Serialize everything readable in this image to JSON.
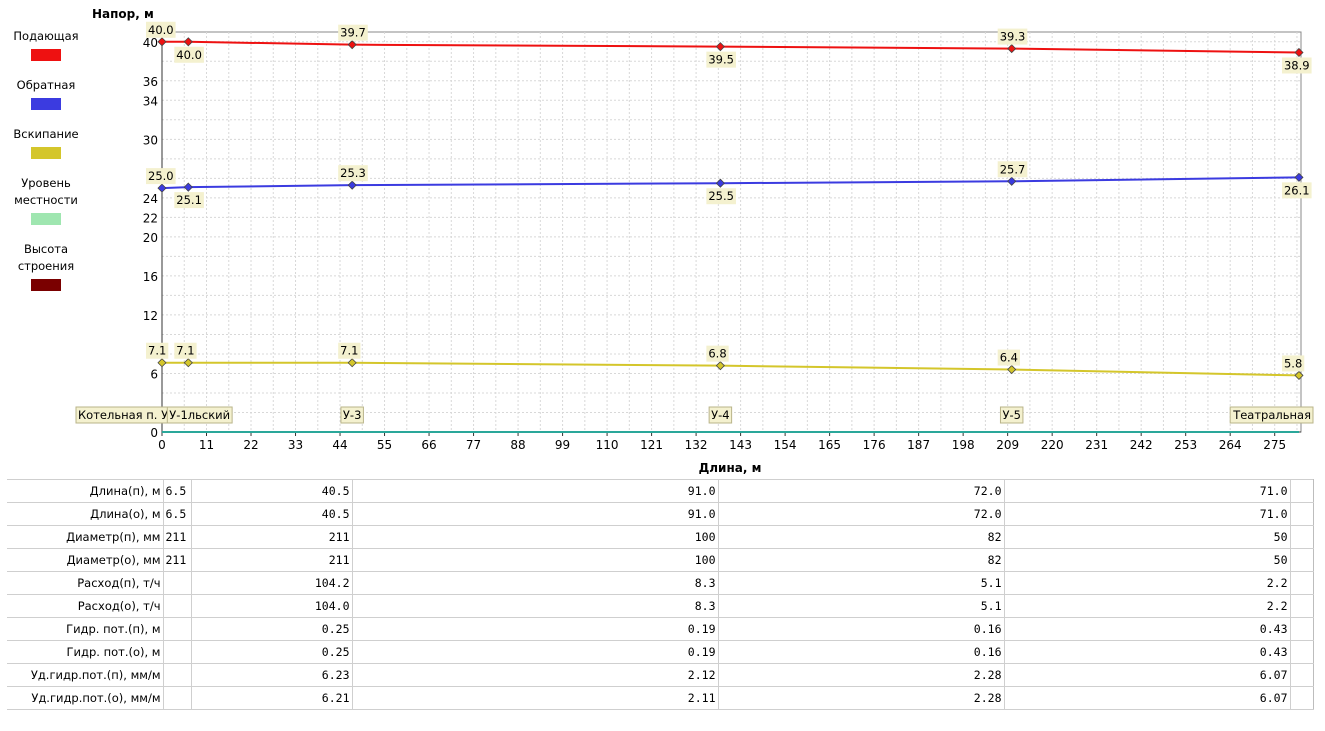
{
  "chart_data": {
    "type": "line",
    "ylabel": "Напор, м",
    "xlabel": "Длина, м",
    "xlim": [
      0,
      281.5
    ],
    "ylim": [
      0,
      41
    ],
    "x_ticks": [
      0,
      11,
      22,
      33,
      44,
      55,
      66,
      77,
      88,
      99,
      110,
      121,
      132,
      143,
      154,
      165,
      176,
      187,
      198,
      209,
      220,
      231,
      242,
      253,
      264,
      275
    ],
    "y_ticks": [
      0,
      6,
      12,
      16,
      20,
      22,
      24,
      30,
      34,
      36,
      40
    ],
    "grid": true,
    "legend_position": "left",
    "series": [
      {
        "name": "Подающая",
        "color": "#ee1111",
        "x": [
          0,
          6.5,
          47,
          138,
          210,
          281
        ],
        "y": [
          40.0,
          40.0,
          39.7,
          39.5,
          39.3,
          38.9
        ],
        "labels": [
          "40.0",
          "40.0",
          "39.7",
          "39.5",
          "39.3",
          "38.9"
        ],
        "label_side": [
          "up",
          "down",
          "up",
          "down",
          "up",
          "down"
        ]
      },
      {
        "name": "Обратная",
        "color": "#3b3be0",
        "x": [
          0,
          6.5,
          47,
          138,
          210,
          281
        ],
        "y": [
          25.0,
          25.1,
          25.3,
          25.5,
          25.7,
          26.1
        ],
        "labels": [
          "25.0",
          "25.1",
          "25.3",
          "25.5",
          "25.7",
          "26.1"
        ],
        "label_side": [
          "up",
          "down",
          "up",
          "down",
          "up",
          "down"
        ]
      },
      {
        "name": "Вскипание",
        "color": "#d4c62b",
        "x": [
          0,
          6.5,
          47,
          138,
          210,
          281
        ],
        "y": [
          7.1,
          7.1,
          7.1,
          6.8,
          6.4,
          5.8
        ],
        "labels": [
          "7.1",
          "7.1",
          "7.1",
          "6.8",
          "6.4",
          "5.8"
        ],
        "label_side": [
          "up",
          "up",
          "up",
          "up",
          "up",
          "up"
        ]
      },
      {
        "name": "Уровень местности",
        "color": "#9fe6b0",
        "x": [
          0,
          281
        ],
        "y": [
          0,
          0
        ]
      },
      {
        "name": "Высота строения",
        "color": "#7a0000",
        "x": [],
        "y": []
      }
    ],
    "node_labels": [
      {
        "x": 0,
        "text": "Котельная п. У"
      },
      {
        "x": 6.5,
        "text": "У-1льский"
      },
      {
        "x": 47,
        "text": "У-3"
      },
      {
        "x": 138,
        "text": "У-4"
      },
      {
        "x": 210,
        "text": "У-5"
      },
      {
        "x": 281,
        "text": "Театральная"
      }
    ]
  },
  "legend": [
    {
      "label": "Подающая",
      "color": "#ee1111"
    },
    {
      "label": "Обратная",
      "color": "#3b3be0"
    },
    {
      "label": "Вскипание",
      "color": "#d4c62b"
    },
    {
      "label": "Уровень местности",
      "color": "#9fe6b0"
    },
    {
      "label": "Высота строения",
      "color": "#7a0000"
    }
  ],
  "table": {
    "rows": [
      {
        "label": "Длина(п), м",
        "values": [
          "6.5",
          "40.5",
          "91.0",
          "72.0",
          "71.0"
        ]
      },
      {
        "label": "Длина(о), м",
        "values": [
          "6.5",
          "40.5",
          "91.0",
          "72.0",
          "71.0"
        ]
      },
      {
        "label": "Диаметр(п), мм",
        "values": [
          "211",
          "211",
          "100",
          "82",
          "50"
        ]
      },
      {
        "label": "Диаметр(о), мм",
        "values": [
          "211",
          "211",
          "100",
          "82",
          "50"
        ]
      },
      {
        "label": "Расход(п), т/ч",
        "values": [
          "",
          "104.2",
          "8.3",
          "5.1",
          "2.2"
        ]
      },
      {
        "label": "Расход(о), т/ч",
        "values": [
          "",
          "104.0",
          "8.3",
          "5.1",
          "2.2"
        ]
      },
      {
        "label": "Гидр. пот.(п), м",
        "values": [
          "",
          "0.25",
          "0.19",
          "0.16",
          "0.43"
        ]
      },
      {
        "label": "Гидр. пот.(о), м",
        "values": [
          "",
          "0.25",
          "0.19",
          "0.16",
          "0.43"
        ]
      },
      {
        "label": "Уд.гидр.пот.(п), мм/м",
        "values": [
          "",
          "6.23",
          "2.12",
          "2.28",
          "6.07"
        ]
      },
      {
        "label": "Уд.гидр.пот.(о), мм/м",
        "values": [
          "",
          "6.21",
          "2.11",
          "2.28",
          "6.07"
        ]
      }
    ]
  }
}
